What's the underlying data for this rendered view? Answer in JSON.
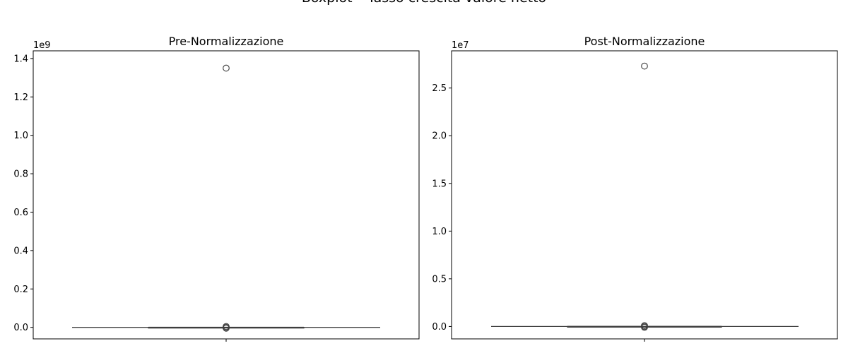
{
  "figure": {
    "title": "Boxplot – Tasso crescita valore netto"
  },
  "chart_data": [
    {
      "type": "boxplot",
      "title": "Pre-Normalizzazione",
      "xlabel": "",
      "ylabel": "",
      "y_offset_label": "1e9",
      "y_ticks": [
        0.0,
        0.2,
        0.4,
        0.6,
        0.8,
        1.0,
        1.2,
        1.4
      ],
      "y_tick_labels": [
        "0.0",
        "0.2",
        "0.4",
        "0.6",
        "0.8",
        "1.0",
        "1.2",
        "1.4"
      ],
      "ylim": [
        -0.06,
        1.44
      ],
      "box": {
        "whisker_low": 0,
        "q1": 0,
        "median": 0,
        "q3": 0,
        "whisker_high": 0
      },
      "outliers": [
        1.35,
        0.0,
        0.0,
        0.0
      ]
    },
    {
      "type": "boxplot",
      "title": "Post-Normalizzazione",
      "xlabel": "",
      "ylabel": "",
      "y_offset_label": "1e7",
      "y_ticks": [
        0.0,
        0.5,
        1.0,
        1.5,
        2.0,
        2.5
      ],
      "y_tick_labels": [
        "0.0",
        "0.5",
        "1.0",
        "1.5",
        "2.0",
        "2.5"
      ],
      "ylim": [
        -0.13,
        2.89
      ],
      "box": {
        "whisker_low": 0,
        "q1": 0,
        "median": 0,
        "q3": 0,
        "whisker_high": 0
      },
      "outliers": [
        2.73,
        0.0,
        0.0,
        0.0
      ]
    }
  ]
}
